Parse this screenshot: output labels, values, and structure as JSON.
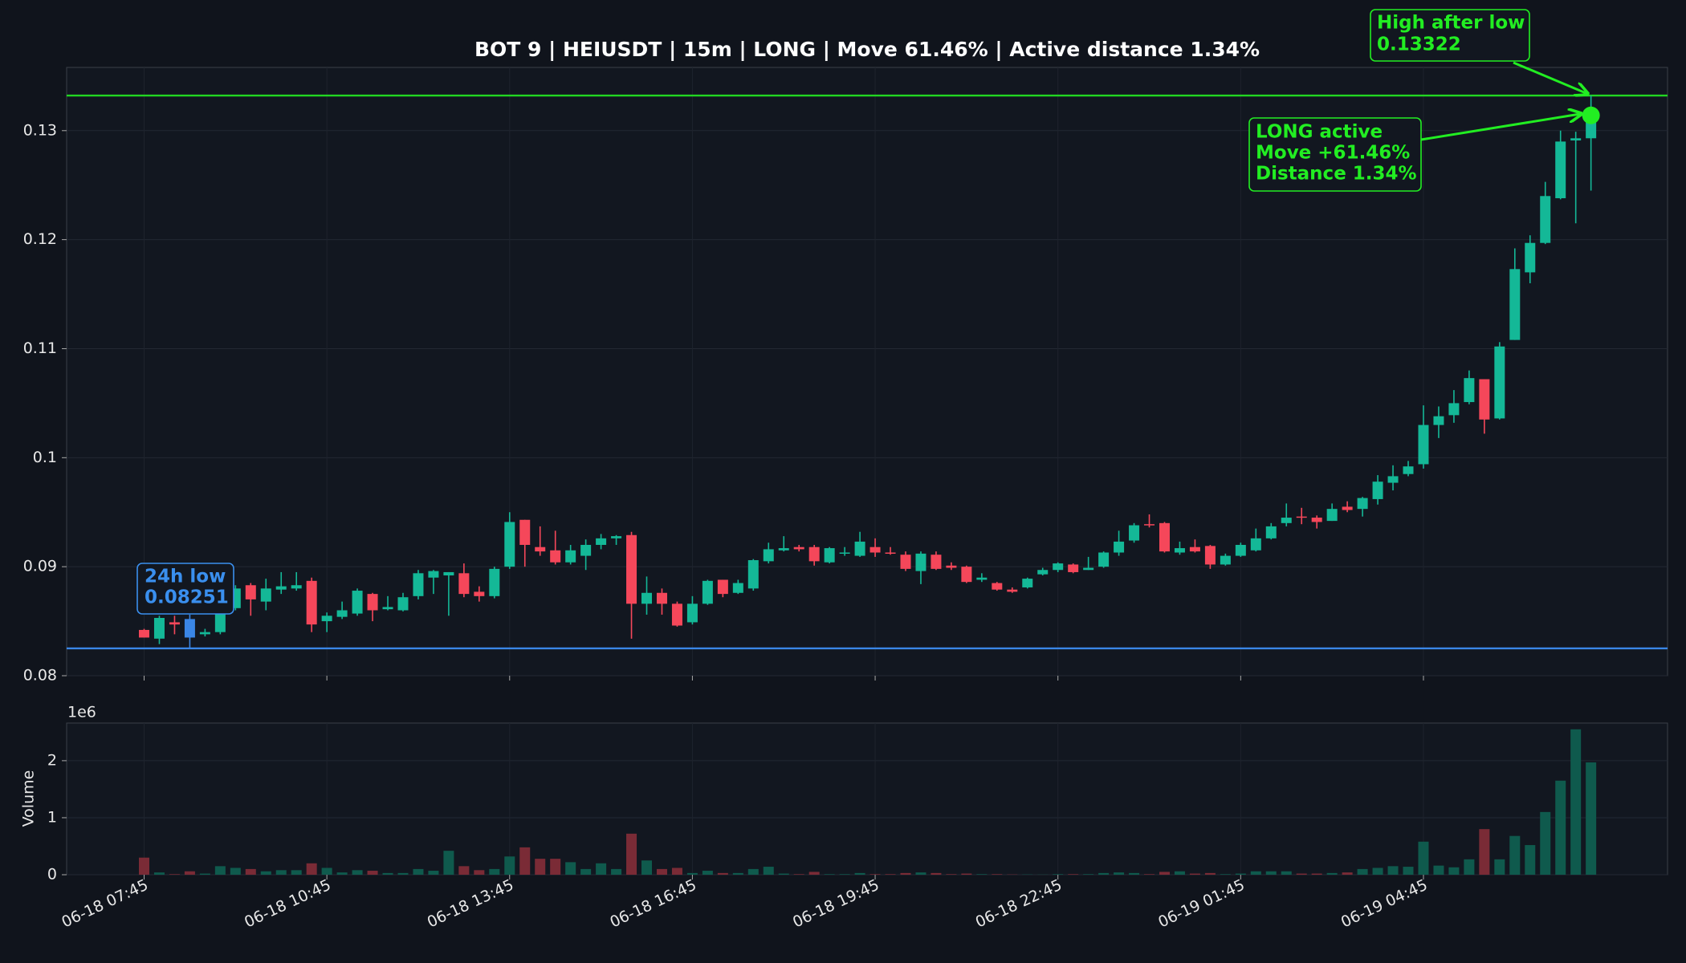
{
  "chart_data": [
    {
      "type": "candlestick",
      "title": "BOT 9 | HEIUSDT | 15m | LONG | Move 61.46% | Active distance 1.34%",
      "categories": [
        "06-18 07:45",
        null,
        null,
        null,
        null,
        null,
        null,
        null,
        null,
        null,
        null,
        null,
        "06-18 10:45",
        null,
        null,
        null,
        null,
        null,
        null,
        null,
        null,
        null,
        null,
        null,
        "06-18 13:45",
        null,
        null,
        null,
        null,
        null,
        null,
        null,
        null,
        null,
        null,
        null,
        "06-18 16:45",
        null,
        null,
        null,
        null,
        null,
        null,
        null,
        null,
        null,
        null,
        null,
        "06-18 19:45",
        null,
        null,
        null,
        null,
        null,
        null,
        null,
        null,
        null,
        null,
        null,
        "06-18 22:45",
        null,
        null,
        null,
        null,
        null,
        null,
        null,
        null,
        null,
        null,
        null,
        "06-19 01:45",
        null,
        null,
        null,
        null,
        null,
        null,
        null,
        null,
        null,
        null,
        null,
        "06-19 04:45",
        null,
        null,
        null,
        null,
        null,
        null,
        null,
        null,
        null,
        null,
        null
      ],
      "open": [
        0.0842,
        0.0834,
        0.0849,
        0.0852,
        0.0838,
        0.084,
        0.0862,
        0.0883,
        0.0868,
        0.0879,
        0.088,
        0.0887,
        0.085,
        0.0854,
        0.0857,
        0.0875,
        0.0861,
        0.086,
        0.0873,
        0.089,
        0.0892,
        0.0894,
        0.0877,
        0.0873,
        0.09,
        0.0943,
        0.0918,
        0.0915,
        0.0904,
        0.091,
        0.092,
        0.0926,
        0.0929,
        0.0866,
        0.0876,
        0.0866,
        0.0849,
        0.0866,
        0.0888,
        0.0876,
        0.088,
        0.0905,
        0.0915,
        0.0918,
        0.0918,
        0.0904,
        0.0912,
        0.091,
        0.0918,
        0.0913,
        0.0911,
        0.0896,
        0.0911,
        0.0901,
        0.09,
        0.0888,
        0.0885,
        0.0879,
        0.0881,
        0.0893,
        0.0897,
        0.0902,
        0.0897,
        0.09,
        0.0913,
        0.0924,
        0.0939,
        0.094,
        0.0913,
        0.0918,
        0.0919,
        0.0902,
        0.091,
        0.0915,
        0.0926,
        0.094,
        0.0946,
        0.0945,
        0.0942,
        0.0955,
        0.0953,
        0.0962,
        0.0977,
        0.0985,
        0.0994,
        0.103,
        0.1039,
        0.1051,
        0.1072,
        0.1036,
        0.1108,
        0.117,
        0.1197,
        0.1238,
        0.1291,
        0.1293
      ],
      "high": [
        0.0843,
        0.0855,
        0.0855,
        0.0856,
        0.0843,
        0.0868,
        0.0883,
        0.0885,
        0.0889,
        0.0895,
        0.0895,
        0.089,
        0.0858,
        0.0868,
        0.088,
        0.0876,
        0.0873,
        0.0876,
        0.0897,
        0.0897,
        0.0895,
        0.0903,
        0.0882,
        0.09,
        0.095,
        0.0943,
        0.0937,
        0.0933,
        0.092,
        0.0925,
        0.093,
        0.0929,
        0.0932,
        0.0891,
        0.088,
        0.0868,
        0.0873,
        0.0888,
        0.0888,
        0.0888,
        0.0907,
        0.0922,
        0.0928,
        0.092,
        0.092,
        0.0918,
        0.0918,
        0.0932,
        0.0926,
        0.0918,
        0.0914,
        0.0914,
        0.0914,
        0.0904,
        0.0901,
        0.0894,
        0.0886,
        0.0881,
        0.089,
        0.0899,
        0.0904,
        0.0903,
        0.0909,
        0.0914,
        0.0933,
        0.094,
        0.0948,
        0.0941,
        0.0923,
        0.0925,
        0.092,
        0.0912,
        0.0922,
        0.0935,
        0.094,
        0.0958,
        0.0954,
        0.0947,
        0.0958,
        0.096,
        0.0964,
        0.0984,
        0.0993,
        0.0997,
        0.1048,
        0.1047,
        0.1062,
        0.108,
        0.1072,
        0.1106,
        0.1192,
        0.1204,
        0.1253,
        0.13,
        0.1299,
        0.13322
      ],
      "low": [
        0.0835,
        0.0829,
        0.0838,
        0.08251,
        0.0836,
        0.0838,
        0.086,
        0.0855,
        0.086,
        0.0875,
        0.0878,
        0.084,
        0.084,
        0.0852,
        0.0855,
        0.085,
        0.086,
        0.0859,
        0.087,
        0.0875,
        0.0855,
        0.0872,
        0.0868,
        0.0871,
        0.0898,
        0.09,
        0.091,
        0.0902,
        0.0902,
        0.0897,
        0.0916,
        0.092,
        0.0834,
        0.0856,
        0.0856,
        0.0845,
        0.0847,
        0.0865,
        0.0872,
        0.0875,
        0.0878,
        0.0903,
        0.0914,
        0.0914,
        0.0901,
        0.0903,
        0.091,
        0.0909,
        0.0909,
        0.0911,
        0.0896,
        0.0884,
        0.0897,
        0.0897,
        0.0885,
        0.0886,
        0.0878,
        0.0876,
        0.088,
        0.0892,
        0.0895,
        0.0894,
        0.0897,
        0.0899,
        0.091,
        0.0922,
        0.0936,
        0.0913,
        0.0911,
        0.0913,
        0.0898,
        0.0901,
        0.0909,
        0.0914,
        0.0925,
        0.0937,
        0.0939,
        0.0935,
        0.0942,
        0.095,
        0.0946,
        0.0957,
        0.097,
        0.0983,
        0.099,
        0.1018,
        0.1032,
        0.1049,
        0.1022,
        0.1035,
        0.1108,
        0.116,
        0.1196,
        0.1237,
        0.1215,
        0.1245
      ],
      "close": [
        0.0835,
        0.0853,
        0.0847,
        0.0835,
        0.084,
        0.0865,
        0.088,
        0.087,
        0.088,
        0.0882,
        0.0883,
        0.0847,
        0.0855,
        0.086,
        0.0878,
        0.086,
        0.0863,
        0.0872,
        0.0894,
        0.0896,
        0.0895,
        0.0875,
        0.0873,
        0.0898,
        0.0941,
        0.092,
        0.0914,
        0.0904,
        0.0915,
        0.092,
        0.0926,
        0.0928,
        0.0866,
        0.0876,
        0.0866,
        0.0846,
        0.0866,
        0.0887,
        0.0875,
        0.0885,
        0.0906,
        0.0916,
        0.0917,
        0.0916,
        0.0905,
        0.0917,
        0.0913,
        0.0923,
        0.0913,
        0.0912,
        0.0898,
        0.0912,
        0.0898,
        0.0899,
        0.0886,
        0.089,
        0.0879,
        0.0877,
        0.0889,
        0.0897,
        0.0903,
        0.0895,
        0.0899,
        0.0913,
        0.0923,
        0.0938,
        0.0938,
        0.0914,
        0.0917,
        0.0914,
        0.0902,
        0.091,
        0.092,
        0.0926,
        0.0937,
        0.0945,
        0.0945,
        0.0941,
        0.0953,
        0.0952,
        0.0963,
        0.0978,
        0.0983,
        0.0992,
        0.103,
        0.1038,
        0.105,
        0.1073,
        0.1035,
        0.1102,
        0.1173,
        0.1197,
        0.124,
        0.129,
        0.1293,
        0.1314
      ],
      "up_color": "#14b897",
      "down_color": "#f5475a",
      "low_color": "#3a86e6",
      "ylim": [
        0.08,
        0.1358
      ],
      "yticks": [
        0.08,
        0.09,
        0.1,
        0.11,
        0.12,
        0.13
      ],
      "grid": true,
      "hlines": [
        {
          "value": 0.13322,
          "color": "#22d622"
        },
        {
          "value": 0.08251,
          "color": "#3a86e6"
        }
      ],
      "annotations": [
        {
          "lines": [
            "24h low",
            "0.08251"
          ],
          "color": "#3a8fee"
        },
        {
          "lines": [
            "High after low",
            "0.13322"
          ],
          "color": "#22ee22"
        },
        {
          "lines": [
            "LONG active",
            "Move +61.46%",
            "Distance 1.34%"
          ],
          "color": "#22ee22"
        }
      ]
    },
    {
      "type": "bar",
      "ylabel": "Volume",
      "offset_text": "1e6",
      "values": [
        300000,
        40000,
        10000,
        60000,
        20000,
        150000,
        120000,
        100000,
        60000,
        80000,
        80000,
        200000,
        120000,
        40000,
        80000,
        70000,
        30000,
        30000,
        100000,
        70000,
        420000,
        150000,
        80000,
        100000,
        320000,
        480000,
        280000,
        280000,
        220000,
        100000,
        200000,
        100000,
        720000,
        250000,
        100000,
        120000,
        30000,
        70000,
        30000,
        30000,
        100000,
        140000,
        20000,
        10000,
        50000,
        10000,
        10000,
        30000,
        10000,
        10000,
        30000,
        40000,
        30000,
        10000,
        20000,
        10000,
        10000,
        5000,
        5000,
        3000,
        10000,
        10000,
        10000,
        30000,
        40000,
        30000,
        10000,
        50000,
        60000,
        20000,
        30000,
        10000,
        20000,
        60000,
        60000,
        60000,
        20000,
        20000,
        30000,
        40000,
        100000,
        120000,
        150000,
        140000,
        580000,
        160000,
        130000,
        270000,
        800000,
        270000,
        680000,
        520000,
        1100000,
        1650000,
        2550000,
        1970000
      ],
      "up_color": "#0f5a4d",
      "down_color": "#7a2b36",
      "ylim": [
        0,
        2660000
      ],
      "yticks": [
        0,
        {
          "value": 1000000,
          "label": "1"
        },
        {
          "value": 2000000,
          "label": "2"
        }
      ],
      "grid": true
    }
  ]
}
